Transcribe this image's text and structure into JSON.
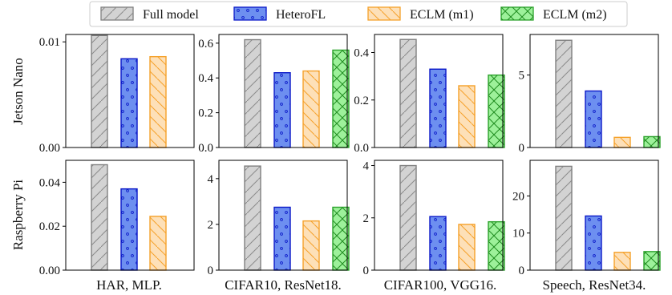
{
  "chart_data": {
    "type": "bar",
    "legend": {
      "placement": "top",
      "entries": [
        "Full model",
        "HeteroFL",
        "ECLM (m1)",
        "ECLM (m2)"
      ]
    },
    "series_styles": [
      {
        "name": "Full model",
        "fill": "#d3d3d3",
        "edge": "#808080",
        "hatch": "slash"
      },
      {
        "name": "HeteroFL",
        "fill": "#6d8ff0",
        "edge": "#0a18c8",
        "hatch": "dots"
      },
      {
        "name": "ECLM (m1)",
        "fill": "#fde0b8",
        "edge": "#f5a12a",
        "hatch": "backslash"
      },
      {
        "name": "ECLM (m2)",
        "fill": "#9df19a",
        "edge": "#2aa12a",
        "hatch": "cross"
      }
    ],
    "row_labels": [
      "Jetson Nano",
      "Raspberry Pi"
    ],
    "col_labels": [
      "HAR, MLP.",
      "CIFAR10, ResNet18.",
      "CIFAR100, VGG16.",
      "Speech, ResNet34."
    ],
    "panels": [
      {
        "row": 0,
        "col": 0,
        "ylim": [
          0,
          0.0107
        ],
        "ticks": [
          0,
          0.01
        ],
        "tick_labels": [
          "0.00",
          "0.01"
        ],
        "values": [
          0.0106,
          0.0084,
          0.0086,
          null
        ]
      },
      {
        "row": 0,
        "col": 1,
        "ylim": [
          0,
          0.65
        ],
        "ticks": [
          0,
          0.2,
          0.4,
          0.6
        ],
        "tick_labels": [
          "0.0",
          "0.2",
          "0.4",
          "0.6"
        ],
        "values": [
          0.62,
          0.43,
          0.44,
          0.56
        ]
      },
      {
        "row": 0,
        "col": 2,
        "ylim": [
          0,
          0.476
        ],
        "ticks": [
          0,
          0.2,
          0.4
        ],
        "tick_labels": [
          "0.0",
          "0.2",
          "0.4"
        ],
        "values": [
          0.455,
          0.33,
          0.26,
          0.305
        ]
      },
      {
        "row": 0,
        "col": 3,
        "ylim": [
          0,
          7.8
        ],
        "ticks": [
          0,
          5
        ],
        "tick_labels": [
          "0",
          "5"
        ],
        "values": [
          7.4,
          3.9,
          0.7,
          0.75
        ]
      },
      {
        "row": 1,
        "col": 0,
        "ylim": [
          0,
          0.05
        ],
        "ticks": [
          0,
          0.02,
          0.04
        ],
        "tick_labels": [
          "0.00",
          "0.02",
          "0.04"
        ],
        "values": [
          0.048,
          0.037,
          0.0245,
          null
        ]
      },
      {
        "row": 1,
        "col": 1,
        "ylim": [
          0,
          4.8
        ],
        "ticks": [
          0,
          2,
          4
        ],
        "tick_labels": [
          "0",
          "2",
          "4"
        ],
        "values": [
          4.55,
          2.75,
          2.15,
          2.75
        ]
      },
      {
        "row": 1,
        "col": 2,
        "ylim": [
          0,
          4.2
        ],
        "ticks": [
          0,
          2,
          4
        ],
        "tick_labels": [
          "0",
          "2",
          "4"
        ],
        "values": [
          4.0,
          2.05,
          1.75,
          1.85
        ]
      },
      {
        "row": 1,
        "col": 3,
        "ylim": [
          0,
          29.6
        ],
        "ticks": [
          0,
          10,
          20
        ],
        "tick_labels": [
          "0",
          "10",
          "20"
        ],
        "values": [
          28.0,
          14.6,
          4.8,
          5.0
        ]
      }
    ]
  }
}
